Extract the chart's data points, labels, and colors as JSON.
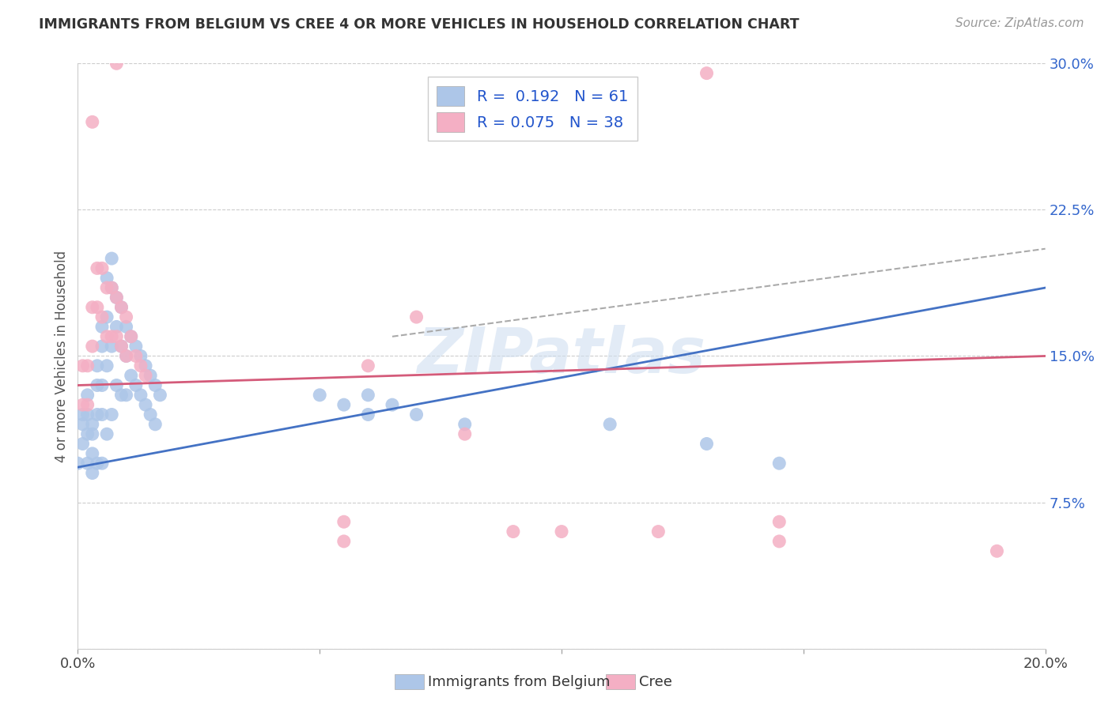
{
  "title": "IMMIGRANTS FROM BELGIUM VS CREE 4 OR MORE VEHICLES IN HOUSEHOLD CORRELATION CHART",
  "source": "Source: ZipAtlas.com",
  "ylabel": "4 or more Vehicles in Household",
  "watermark": "ZIPatlas",
  "legend1_label": "Immigrants from Belgium",
  "legend2_label": "Cree",
  "R1": 0.192,
  "N1": 61,
  "R2": 0.075,
  "N2": 38,
  "color1": "#adc6e8",
  "color2": "#f4afc4",
  "line1_color": "#4472c4",
  "line2_color": "#d45b7a",
  "dashed_line_color": "#aaaaaa",
  "xlim": [
    0.0,
    0.2
  ],
  "ylim": [
    0.0,
    0.3
  ],
  "background_color": "#ffffff",
  "grid_color": "#cccccc",
  "blue_scatter_x": [
    0.001,
    0.001,
    0.001,
    0.002,
    0.002,
    0.002,
    0.002,
    0.003,
    0.003,
    0.003,
    0.003,
    0.004,
    0.004,
    0.004,
    0.004,
    0.005,
    0.005,
    0.005,
    0.005,
    0.005,
    0.006,
    0.006,
    0.006,
    0.006,
    0.007,
    0.007,
    0.007,
    0.007,
    0.008,
    0.008,
    0.008,
    0.009,
    0.009,
    0.009,
    0.01,
    0.01,
    0.01,
    0.011,
    0.011,
    0.012,
    0.012,
    0.013,
    0.013,
    0.014,
    0.014,
    0.015,
    0.015,
    0.016,
    0.016,
    0.017,
    0.05,
    0.055,
    0.06,
    0.06,
    0.065,
    0.07,
    0.08,
    0.11,
    0.13,
    0.145,
    0.0
  ],
  "blue_scatter_y": [
    0.12,
    0.115,
    0.105,
    0.13,
    0.12,
    0.11,
    0.095,
    0.115,
    0.11,
    0.1,
    0.09,
    0.145,
    0.135,
    0.12,
    0.095,
    0.165,
    0.155,
    0.135,
    0.12,
    0.095,
    0.19,
    0.17,
    0.145,
    0.11,
    0.2,
    0.185,
    0.155,
    0.12,
    0.18,
    0.165,
    0.135,
    0.175,
    0.155,
    0.13,
    0.165,
    0.15,
    0.13,
    0.16,
    0.14,
    0.155,
    0.135,
    0.15,
    0.13,
    0.145,
    0.125,
    0.14,
    0.12,
    0.135,
    0.115,
    0.13,
    0.13,
    0.125,
    0.13,
    0.12,
    0.125,
    0.12,
    0.115,
    0.115,
    0.105,
    0.095,
    0.095
  ],
  "pink_scatter_x": [
    0.001,
    0.001,
    0.002,
    0.002,
    0.003,
    0.003,
    0.004,
    0.004,
    0.005,
    0.005,
    0.006,
    0.006,
    0.007,
    0.007,
    0.008,
    0.008,
    0.009,
    0.009,
    0.01,
    0.01,
    0.011,
    0.012,
    0.013,
    0.014,
    0.07,
    0.13,
    0.003,
    0.008,
    0.06,
    0.08,
    0.09,
    0.1,
    0.12,
    0.19,
    0.055,
    0.055,
    0.145,
    0.145
  ],
  "pink_scatter_y": [
    0.145,
    0.125,
    0.145,
    0.125,
    0.175,
    0.155,
    0.195,
    0.175,
    0.195,
    0.17,
    0.185,
    0.16,
    0.185,
    0.16,
    0.18,
    0.16,
    0.175,
    0.155,
    0.17,
    0.15,
    0.16,
    0.15,
    0.145,
    0.14,
    0.17,
    0.295,
    0.27,
    0.3,
    0.145,
    0.11,
    0.06,
    0.06,
    0.06,
    0.05,
    0.065,
    0.055,
    0.065,
    0.055
  ]
}
